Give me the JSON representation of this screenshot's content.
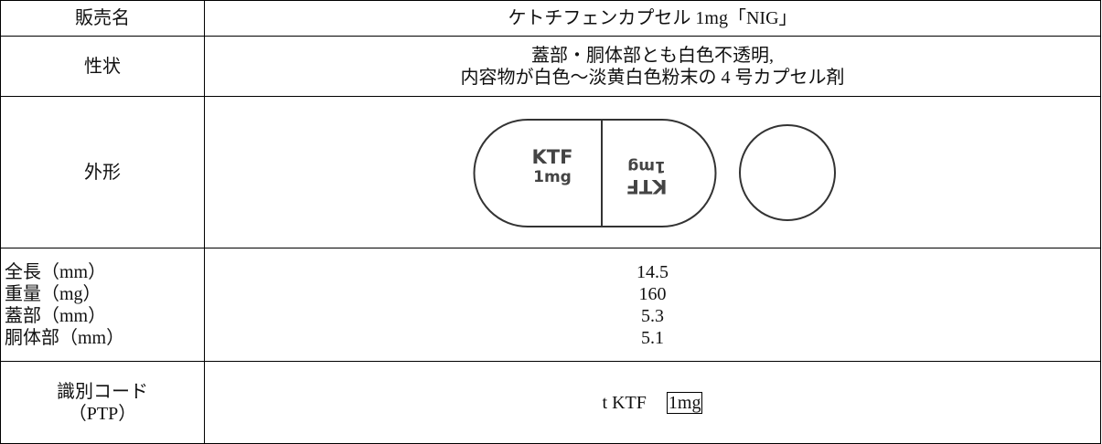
{
  "table": {
    "rows": [
      {
        "label": [
          "販売名"
        ],
        "value": [
          "ケトチフェンカプセル 1mg「NIG」"
        ]
      },
      {
        "label": [
          "性状"
        ],
        "value": [
          "蓋部・胴体部とも白色不透明,",
          "内容物が白色～淡黄白色粉末の 4 号カプセル剤"
        ]
      },
      {
        "label": [
          "外形"
        ],
        "imprint": [
          "KTF",
          "1mg"
        ]
      },
      {
        "label": [
          "全長（mm）",
          "重量（mg）",
          "蓋部（mm）",
          "胴体部（mm）"
        ],
        "value": [
          "14.5",
          "160",
          "5.3",
          "5.1"
        ]
      },
      {
        "label": [
          "識別コード",
          "（PTP）"
        ],
        "value": [
          "t KTF",
          "1mg"
        ]
      }
    ]
  }
}
